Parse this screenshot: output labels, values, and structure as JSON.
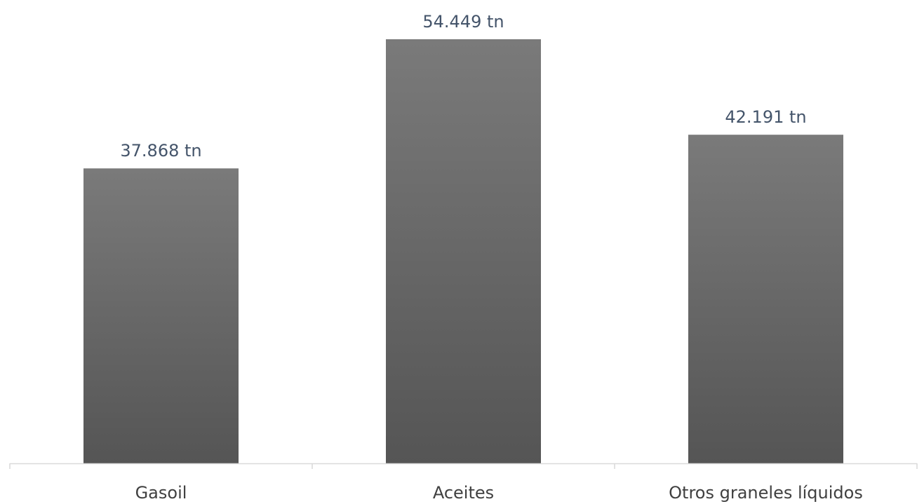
{
  "chart_data": {
    "type": "bar",
    "categories": [
      "Gasoil",
      "Aceites",
      "Otros graneles líquidos"
    ],
    "values": [
      37868,
      54449,
      42191
    ],
    "value_labels": [
      "37.868 tn",
      "54.449 tn",
      "42.191 tn"
    ],
    "unit": "tn",
    "ylim": [
      0,
      54449
    ],
    "grid": false,
    "legend": "none",
    "colors": {
      "bar_top": "#7a7a7a",
      "bar_bottom": "#555555",
      "axis": "#d9d9d9",
      "label": "#44546a",
      "category_text": "#404040"
    }
  }
}
